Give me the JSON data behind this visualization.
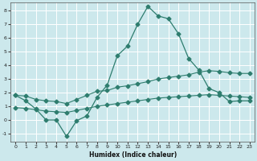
{
  "xlabel": "Humidex (Indice chaleur)",
  "xlim": [
    -0.5,
    23.5
  ],
  "ylim": [
    -1.6,
    8.6
  ],
  "yticks": [
    -1,
    0,
    1,
    2,
    3,
    4,
    5,
    6,
    7,
    8
  ],
  "xticks": [
    0,
    1,
    2,
    3,
    4,
    5,
    6,
    7,
    8,
    9,
    10,
    11,
    12,
    13,
    14,
    15,
    16,
    17,
    18,
    19,
    20,
    21,
    22,
    23
  ],
  "background_color": "#cce8ec",
  "grid_color": "#ffffff",
  "line_color": "#2e7d6e",
  "line1_x": [
    0,
    1,
    2,
    3,
    4,
    5,
    6,
    7,
    8,
    9,
    10,
    11,
    12,
    13,
    14,
    15,
    16,
    17,
    18,
    19,
    20,
    21,
    22,
    23
  ],
  "line1_y": [
    1.8,
    1.4,
    0.8,
    0.0,
    0.0,
    -1.2,
    -0.05,
    0.3,
    1.65,
    2.55,
    4.7,
    5.4,
    7.0,
    8.3,
    7.6,
    7.4,
    6.3,
    4.5,
    3.65,
    2.3,
    2.0,
    1.35,
    1.4,
    1.4
  ],
  "line2_x": [
    0,
    1,
    2,
    3,
    4,
    5,
    6,
    7,
    8,
    9,
    10,
    11,
    12,
    13,
    14,
    15,
    16,
    17,
    18,
    19,
    20,
    21,
    22,
    23
  ],
  "line2_y": [
    1.8,
    1.75,
    1.5,
    1.4,
    1.35,
    1.2,
    1.5,
    1.8,
    2.1,
    2.15,
    2.4,
    2.5,
    2.65,
    2.8,
    3.0,
    3.1,
    3.2,
    3.3,
    3.5,
    3.6,
    3.55,
    3.45,
    3.4,
    3.4
  ],
  "line3_x": [
    0,
    1,
    2,
    3,
    4,
    5,
    6,
    7,
    8,
    9,
    10,
    11,
    12,
    13,
    14,
    15,
    16,
    17,
    18,
    19,
    20,
    21,
    22,
    23
  ],
  "line3_y": [
    0.9,
    0.85,
    0.75,
    0.65,
    0.6,
    0.55,
    0.7,
    0.85,
    1.0,
    1.1,
    1.2,
    1.3,
    1.4,
    1.5,
    1.6,
    1.65,
    1.7,
    1.75,
    1.8,
    1.85,
    1.8,
    1.75,
    1.7,
    1.65
  ]
}
